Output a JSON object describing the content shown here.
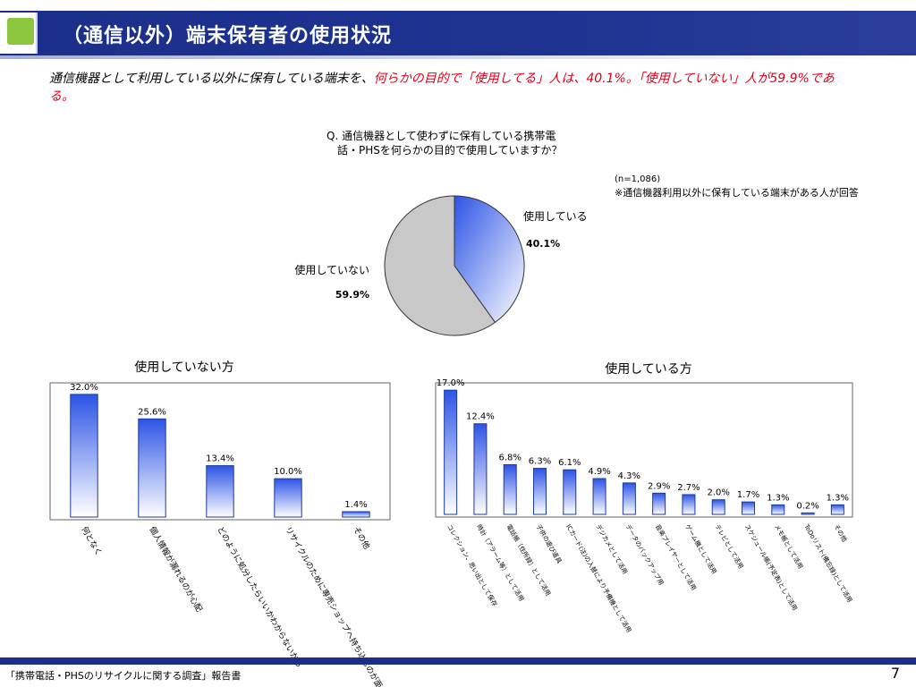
{
  "title": "（通信以外）端末保有者の使用状況",
  "summary": {
    "part1": "通信機器として利用している以外に保有している端末を、",
    "part2": "何らかの目的で「使用してる」人は、40.1%。「使用していない」人が59.9%である。"
  },
  "question": {
    "line1": "Q. 通信機器として使わずに保有している携帯電",
    "line2": "話・PHSを何らかの目的で使用していますか？"
  },
  "note": {
    "n": "(n=1,086)",
    "text": "※通信機器利用以外に保有している端末がある人が回答"
  },
  "footer": {
    "text": "「携帯電話・PHSのリサイクルに関する調査」報告書",
    "page": "7"
  },
  "colors": {
    "header": "#1b2f8a",
    "accent_red": "#e2001a",
    "bar_blue": "#3c62e0",
    "pie_gray": "#c8c8c8"
  },
  "chart_data": [
    {
      "type": "pie",
      "slices": [
        {
          "label": "使用している",
          "value": 40.1,
          "value_label": "40.1%"
        },
        {
          "label": "使用していない",
          "value": 59.9,
          "value_label": "59.9%"
        }
      ]
    },
    {
      "type": "bar",
      "title": "使用していない方",
      "categories": [
        "何となく",
        "個人情報が漏れるのが心配",
        "どのように処分したらいいかわからないから",
        "リサイクルのために専売ショップへ持ち込むのが面倒だから",
        "その他"
      ],
      "values": [
        32.0,
        25.6,
        13.4,
        10.0,
        1.4
      ],
      "value_labels": [
        "32.0%",
        "25.6%",
        "13.4%",
        "10.0%",
        "1.4%"
      ],
      "ylim": [
        0,
        35
      ]
    },
    {
      "type": "bar",
      "title": "使用している方",
      "categories": [
        "コレクション、思い出として保存",
        "時計（アラーム等）として活用",
        "電話帳（住所録）として活用",
        "子供の遊び道具",
        "ICカード(注)の入替により予備機として活用",
        "デジカメとして活用",
        "データのバックアップ用",
        "音楽プレイヤーとして活用",
        "ゲーム機として活用",
        "テレビとして活用",
        "スケジュール帳(予定表)として活用",
        "メモ帳として活用",
        "ToDoリスト(備忘録)として活用",
        "その他"
      ],
      "values": [
        17.0,
        12.4,
        6.8,
        6.3,
        6.1,
        4.9,
        4.3,
        2.9,
        2.7,
        2.0,
        1.7,
        1.3,
        0.2,
        1.3
      ],
      "value_labels": [
        "17.0%",
        "12.4%",
        "6.8%",
        "6.3%",
        "6.1%",
        "4.9%",
        "4.3%",
        "2.9%",
        "2.7%",
        "2.0%",
        "1.7%",
        "1.3%",
        "0.2%",
        "1.3%"
      ],
      "ylim": [
        0,
        18
      ]
    }
  ]
}
